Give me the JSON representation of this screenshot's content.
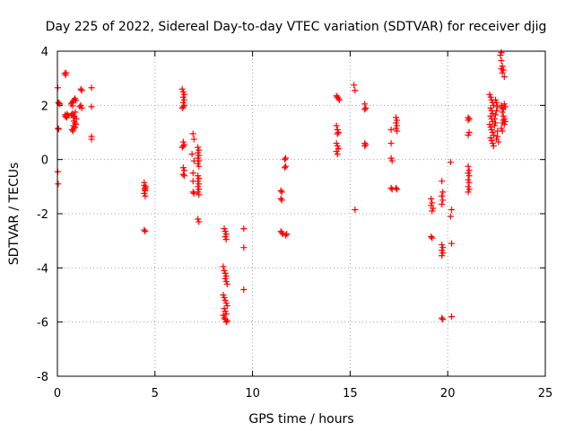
{
  "chart_data": {
    "type": "scatter",
    "title": "Day 225 of 2022, Sidereal Day-to-day VTEC variation (SDTVAR) for receiver djig",
    "xlabel": "GPS time / hours",
    "ylabel": "SDTVAR / TECUs",
    "xlim": [
      0,
      25
    ],
    "ylim": [
      -8,
      4
    ],
    "xticks": [
      0,
      5,
      10,
      15,
      20,
      25
    ],
    "xtick_labels": [
      "0",
      "5",
      "10",
      "15",
      "20",
      "25"
    ],
    "yticks": [
      -8,
      -6,
      -4,
      -2,
      0,
      2,
      4
    ],
    "ytick_labels": [
      "-8",
      "-6",
      "-4",
      "-2",
      "0",
      "2",
      "4"
    ],
    "grid": true,
    "marker": "plus",
    "color": "#ff0000",
    "points": [
      [
        0.02,
        2.65
      ],
      [
        0.05,
        2.1
      ],
      [
        0.08,
        2.08
      ],
      [
        0.12,
        2.05
      ],
      [
        0.03,
        1.15
      ],
      [
        0.06,
        1.12
      ],
      [
        0.02,
        -0.45
      ],
      [
        0.04,
        -0.9
      ],
      [
        0.38,
        3.18
      ],
      [
        0.42,
        3.12
      ],
      [
        0.45,
        3.2
      ],
      [
        0.4,
        1.65
      ],
      [
        0.45,
        1.6
      ],
      [
        0.5,
        1.68
      ],
      [
        0.55,
        1.62
      ],
      [
        0.42,
        1.58
      ],
      [
        0.48,
        1.55
      ],
      [
        0.7,
        2.05
      ],
      [
        0.75,
        2.1
      ],
      [
        0.8,
        2.15
      ],
      [
        0.85,
        2.2
      ],
      [
        0.9,
        2.25
      ],
      [
        0.95,
        2.18
      ],
      [
        0.78,
        1.98
      ],
      [
        0.72,
        1.65
      ],
      [
        0.78,
        1.7
      ],
      [
        0.82,
        1.55
      ],
      [
        0.88,
        1.6
      ],
      [
        0.92,
        1.75
      ],
      [
        0.98,
        1.5
      ],
      [
        0.85,
        1.42
      ],
      [
        0.9,
        1.35
      ],
      [
        0.75,
        1.1
      ],
      [
        0.8,
        1.05
      ],
      [
        0.85,
        1.15
      ],
      [
        0.9,
        1.2
      ],
      [
        0.95,
        1.3
      ],
      [
        0.82,
        1.25
      ],
      [
        1.2,
        2.6
      ],
      [
        1.25,
        2.55
      ],
      [
        1.15,
        1.95
      ],
      [
        1.2,
        2.0
      ],
      [
        1.25,
        1.9
      ],
      [
        1.75,
        2.65
      ],
      [
        1.75,
        1.95
      ],
      [
        1.75,
        0.85
      ],
      [
        1.75,
        0.75
      ],
      [
        4.45,
        -0.85
      ],
      [
        4.45,
        -0.95
      ],
      [
        4.5,
        -1.05
      ],
      [
        4.5,
        -1.15
      ],
      [
        4.45,
        -1.25
      ],
      [
        4.5,
        -1.35
      ],
      [
        4.48,
        -1.1
      ],
      [
        4.52,
        -1.0
      ],
      [
        4.45,
        -2.6
      ],
      [
        4.5,
        -2.65
      ],
      [
        6.4,
        2.6
      ],
      [
        6.45,
        2.5
      ],
      [
        6.5,
        2.4
      ],
      [
        6.45,
        2.3
      ],
      [
        6.5,
        2.2
      ],
      [
        6.45,
        2.1
      ],
      [
        6.5,
        2.0
      ],
      [
        6.45,
        1.95
      ],
      [
        6.4,
        1.9
      ],
      [
        6.45,
        0.65
      ],
      [
        6.5,
        0.55
      ],
      [
        6.4,
        0.45
      ],
      [
        6.45,
        0.5
      ],
      [
        6.45,
        -0.3
      ],
      [
        6.5,
        -0.4
      ],
      [
        6.45,
        -0.55
      ],
      [
        6.5,
        -0.6
      ],
      [
        6.95,
        0.95
      ],
      [
        7.0,
        0.75
      ],
      [
        6.9,
        0.2
      ],
      [
        7.0,
        -0.05
      ],
      [
        6.95,
        -0.5
      ],
      [
        6.95,
        -0.8
      ],
      [
        6.95,
        -1.2
      ],
      [
        7.0,
        -1.25
      ],
      [
        7.2,
        0.45
      ],
      [
        7.25,
        0.35
      ],
      [
        7.2,
        0.25
      ],
      [
        7.25,
        0.15
      ],
      [
        7.2,
        0.05
      ],
      [
        7.25,
        -0.05
      ],
      [
        7.2,
        -0.15
      ],
      [
        7.25,
        -0.25
      ],
      [
        7.2,
        -0.6
      ],
      [
        7.25,
        -0.7
      ],
      [
        7.2,
        -0.8
      ],
      [
        7.25,
        -0.9
      ],
      [
        7.2,
        -1.0
      ],
      [
        7.25,
        -1.1
      ],
      [
        7.2,
        -1.2
      ],
      [
        7.25,
        -1.3
      ],
      [
        7.2,
        -2.2
      ],
      [
        7.25,
        -2.3
      ],
      [
        8.55,
        -2.55
      ],
      [
        8.6,
        -2.65
      ],
      [
        8.65,
        -2.75
      ],
      [
        8.6,
        -2.85
      ],
      [
        8.65,
        -2.95
      ],
      [
        8.5,
        -3.95
      ],
      [
        8.55,
        -4.1
      ],
      [
        8.6,
        -4.2
      ],
      [
        8.65,
        -4.3
      ],
      [
        8.6,
        -4.4
      ],
      [
        8.65,
        -4.5
      ],
      [
        8.7,
        -4.6
      ],
      [
        8.5,
        -5.0
      ],
      [
        8.55,
        -5.1
      ],
      [
        8.6,
        -5.2
      ],
      [
        8.65,
        -5.3
      ],
      [
        8.7,
        -5.4
      ],
      [
        8.55,
        -5.5
      ],
      [
        8.6,
        -5.6
      ],
      [
        8.65,
        -5.7
      ],
      [
        8.5,
        -5.75
      ],
      [
        8.55,
        -5.85
      ],
      [
        8.6,
        -5.9
      ],
      [
        8.7,
        -5.95
      ],
      [
        8.65,
        -6.0
      ],
      [
        9.55,
        -2.55
      ],
      [
        9.55,
        -3.25
      ],
      [
        9.55,
        -4.8
      ],
      [
        11.45,
        -1.15
      ],
      [
        11.5,
        -1.2
      ],
      [
        11.45,
        -1.45
      ],
      [
        11.5,
        -1.5
      ],
      [
        11.45,
        -2.65
      ],
      [
        11.5,
        -2.7
      ],
      [
        11.55,
        -2.75
      ],
      [
        11.7,
        0.05
      ],
      [
        11.65,
        0.0
      ],
      [
        11.7,
        -0.25
      ],
      [
        11.65,
        -0.3
      ],
      [
        11.75,
        -2.75
      ],
      [
        11.7,
        -2.8
      ],
      [
        14.3,
        2.35
      ],
      [
        14.35,
        2.3
      ],
      [
        14.4,
        2.25
      ],
      [
        14.45,
        2.2
      ],
      [
        14.3,
        1.25
      ],
      [
        14.35,
        1.1
      ],
      [
        14.4,
        1.0
      ],
      [
        14.35,
        0.95
      ],
      [
        14.3,
        0.6
      ],
      [
        14.35,
        0.5
      ],
      [
        14.4,
        0.4
      ],
      [
        14.3,
        0.3
      ],
      [
        14.35,
        0.2
      ],
      [
        15.2,
        2.75
      ],
      [
        15.25,
        2.55
      ],
      [
        15.25,
        -1.85
      ],
      [
        15.75,
        2.05
      ],
      [
        15.8,
        1.9
      ],
      [
        15.75,
        1.85
      ],
      [
        15.75,
        0.6
      ],
      [
        15.8,
        0.55
      ],
      [
        15.75,
        0.5
      ],
      [
        17.1,
        1.1
      ],
      [
        17.1,
        0.6
      ],
      [
        17.1,
        0.05
      ],
      [
        17.15,
        -0.05
      ],
      [
        17.1,
        -1.05
      ],
      [
        17.15,
        -1.1
      ],
      [
        17.35,
        1.55
      ],
      [
        17.4,
        1.45
      ],
      [
        17.35,
        1.35
      ],
      [
        17.4,
        1.25
      ],
      [
        17.35,
        1.15
      ],
      [
        17.4,
        1.05
      ],
      [
        17.35,
        -1.05
      ],
      [
        17.4,
        -1.1
      ],
      [
        19.15,
        -1.45
      ],
      [
        19.2,
        -1.6
      ],
      [
        19.15,
        -1.7
      ],
      [
        19.25,
        -1.8
      ],
      [
        19.2,
        -1.9
      ],
      [
        19.15,
        -2.85
      ],
      [
        19.2,
        -2.9
      ],
      [
        19.7,
        -0.8
      ],
      [
        19.75,
        -1.2
      ],
      [
        19.7,
        -1.35
      ],
      [
        19.75,
        -1.5
      ],
      [
        19.7,
        -1.65
      ],
      [
        19.7,
        -3.15
      ],
      [
        19.75,
        -3.25
      ],
      [
        19.7,
        -3.35
      ],
      [
        19.75,
        -3.45
      ],
      [
        19.7,
        -3.55
      ],
      [
        19.7,
        -5.85
      ],
      [
        19.75,
        -5.9
      ],
      [
        20.15,
        -0.1
      ],
      [
        20.2,
        -1.85
      ],
      [
        20.15,
        -2.1
      ],
      [
        20.2,
        -3.1
      ],
      [
        20.2,
        -5.8
      ],
      [
        21.05,
        1.55
      ],
      [
        21.1,
        1.5
      ],
      [
        21.05,
        1.45
      ],
      [
        21.1,
        1.0
      ],
      [
        21.05,
        0.9
      ],
      [
        21.05,
        -0.25
      ],
      [
        21.1,
        -0.4
      ],
      [
        21.05,
        -0.5
      ],
      [
        21.1,
        -0.6
      ],
      [
        21.05,
        -0.75
      ],
      [
        21.1,
        -0.85
      ],
      [
        21.05,
        -1.0
      ],
      [
        21.1,
        -1.1
      ],
      [
        21.05,
        -1.2
      ],
      [
        22.15,
        2.4
      ],
      [
        22.2,
        2.3
      ],
      [
        22.25,
        2.2
      ],
      [
        22.3,
        2.1
      ],
      [
        22.35,
        2.0
      ],
      [
        22.2,
        1.9
      ],
      [
        22.25,
        1.8
      ],
      [
        22.3,
        1.7
      ],
      [
        22.2,
        1.6
      ],
      [
        22.25,
        1.5
      ],
      [
        22.3,
        1.4
      ],
      [
        22.15,
        1.3
      ],
      [
        22.2,
        1.2
      ],
      [
        22.25,
        1.1
      ],
      [
        22.3,
        1.0
      ],
      [
        22.35,
        0.9
      ],
      [
        22.2,
        0.8
      ],
      [
        22.25,
        0.7
      ],
      [
        22.3,
        0.6
      ],
      [
        22.35,
        0.5
      ],
      [
        22.4,
        1.25
      ],
      [
        22.45,
        1.35
      ],
      [
        22.4,
        1.5
      ],
      [
        22.45,
        1.65
      ],
      [
        22.5,
        1.8
      ],
      [
        22.55,
        1.95
      ],
      [
        22.5,
        2.1
      ],
      [
        22.45,
        2.2
      ],
      [
        22.5,
        0.75
      ],
      [
        22.55,
        0.85
      ],
      [
        22.6,
        0.65
      ],
      [
        22.55,
        1.05
      ],
      [
        22.75,
        3.95
      ],
      [
        22.7,
        3.85
      ],
      [
        22.75,
        3.65
      ],
      [
        22.8,
        3.45
      ],
      [
        22.75,
        3.35
      ],
      [
        22.85,
        3.3
      ],
      [
        22.8,
        3.2
      ],
      [
        22.9,
        3.05
      ],
      [
        22.75,
        2.0
      ],
      [
        22.8,
        1.9
      ],
      [
        22.85,
        1.85
      ],
      [
        22.9,
        2.05
      ],
      [
        22.95,
        1.95
      ],
      [
        22.8,
        1.75
      ],
      [
        22.85,
        1.6
      ],
      [
        22.9,
        1.5
      ],
      [
        22.8,
        1.35
      ],
      [
        22.85,
        1.45
      ],
      [
        22.9,
        1.3
      ],
      [
        22.95,
        1.4
      ],
      [
        22.75,
        1.15
      ],
      [
        22.8,
        1.05
      ]
    ]
  }
}
